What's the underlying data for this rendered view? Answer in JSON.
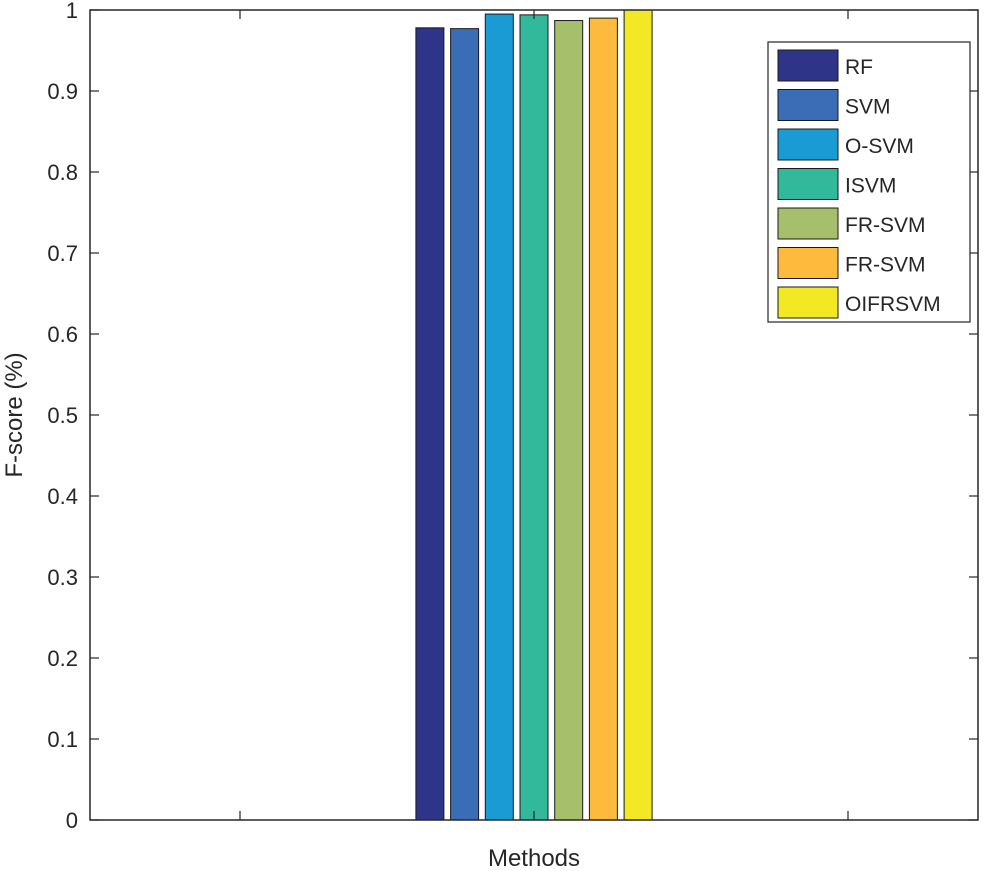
{
  "chart_data": {
    "type": "bar",
    "xlabel": "Methods",
    "ylabel": "F-score (%)",
    "ylim": [
      0,
      1
    ],
    "yticks": [
      "0",
      "0.1",
      "0.2",
      "0.3",
      "0.4",
      "0.5",
      "0.6",
      "0.7",
      "0.8",
      "0.9",
      "1"
    ],
    "grid": false,
    "legend_position": "top-right",
    "series": [
      {
        "name": "RF",
        "value": 0.978,
        "color": "#2E3487"
      },
      {
        "name": "SVM",
        "value": 0.977,
        "color": "#3A6DB5"
      },
      {
        "name": "O-SVM",
        "value": 0.995,
        "color": "#1A9BD4"
      },
      {
        "name": "ISVM",
        "value": 0.994,
        "color": "#32B89A"
      },
      {
        "name": "FR-SVM",
        "value": 0.987,
        "color": "#A6BF6B"
      },
      {
        "name": "FR-SVM",
        "value": 0.99,
        "color": "#FDBA3C"
      },
      {
        "name": "OIFRSVM",
        "value": 1.0,
        "color": "#F2E824"
      }
    ]
  }
}
